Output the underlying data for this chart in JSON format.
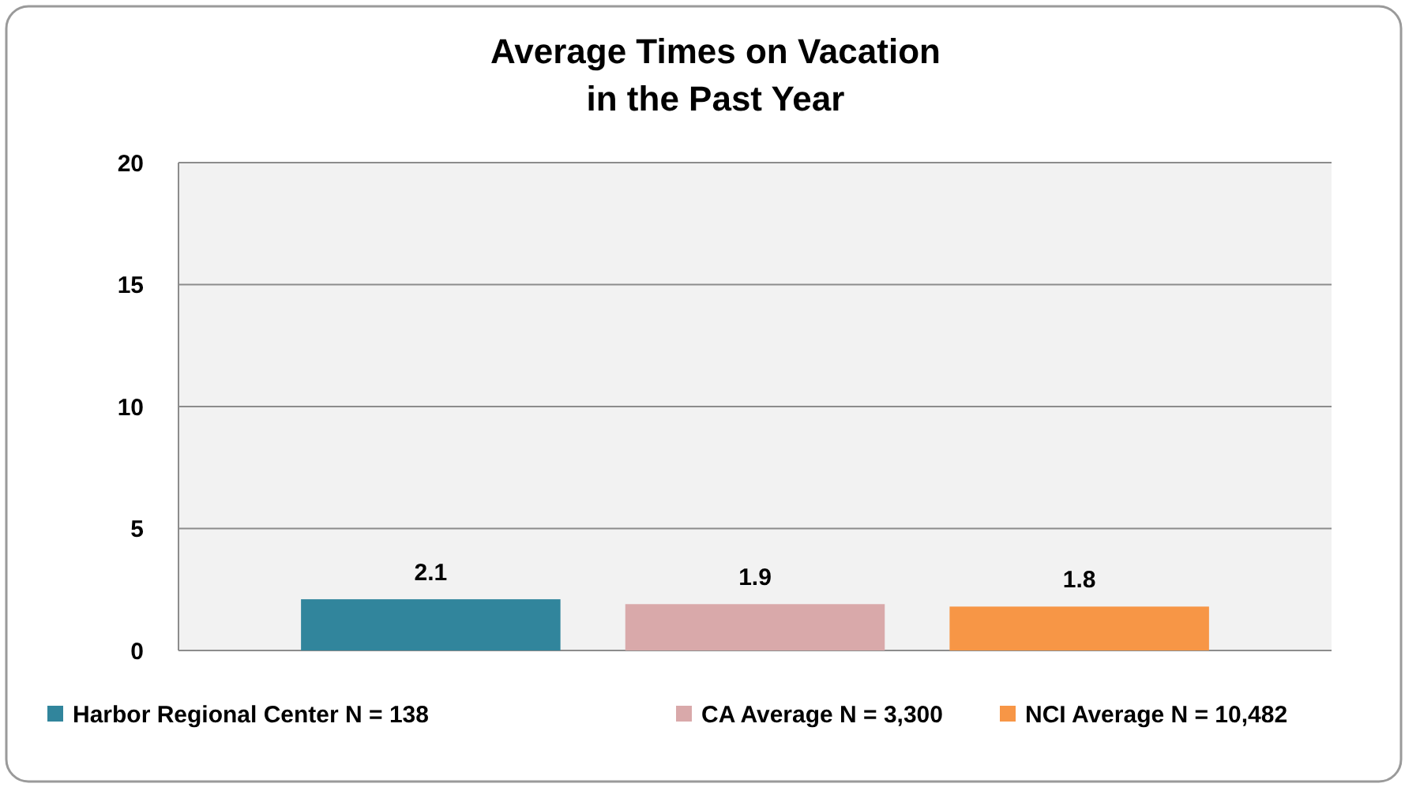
{
  "chart_data": {
    "type": "bar",
    "title": "Average Times on Vacation in the Past Year",
    "categories": [
      null
    ],
    "series": [
      {
        "name": "Harbor Regional Center N = 138",
        "color": "#31859c",
        "values": [
          2.1
        ]
      },
      {
        "name": "CA Average N = 3,300",
        "color": "#d9a9aa",
        "values": [
          1.9
        ]
      },
      {
        "name": "NCI Average N = 10,482",
        "color": "#f79646",
        "values": [
          1.8
        ]
      }
    ],
    "ylim": [
      0,
      20
    ],
    "yticks": [
      0,
      5,
      10,
      15,
      20
    ],
    "grid": "y",
    "legend": "bottom",
    "data_labels": true
  }
}
